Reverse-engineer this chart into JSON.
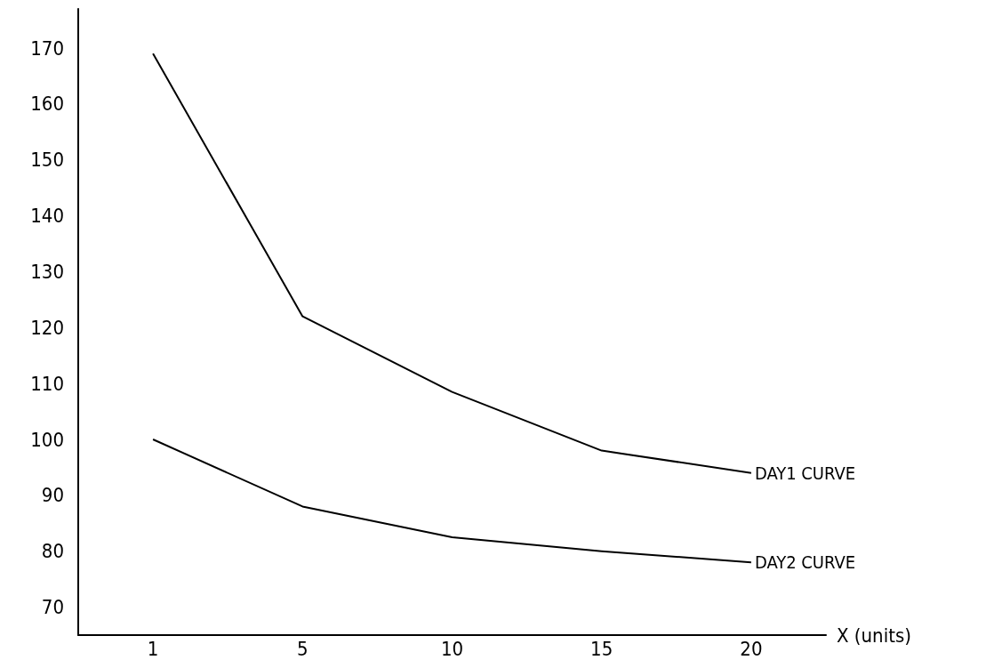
{
  "chart_data": {
    "type": "line",
    "xlabel": "X (units)",
    "categories": [
      "1",
      "5",
      "10",
      "15",
      "20"
    ],
    "series": [
      {
        "name": "DAY1 CURVE",
        "color": "#000000",
        "values": [
          169,
          122,
          108.5,
          98,
          94
        ]
      },
      {
        "name": "DAY2 CURVE",
        "color": "#000000",
        "values": [
          100,
          88,
          82.5,
          80,
          78
        ]
      }
    ],
    "ylim": [
      65,
      177
    ],
    "yticks": [
      70,
      80,
      90,
      100,
      110,
      120,
      130,
      140,
      150,
      160,
      170
    ],
    "grid": false,
    "legend": false,
    "marker": "none",
    "line_style": "solid"
  }
}
